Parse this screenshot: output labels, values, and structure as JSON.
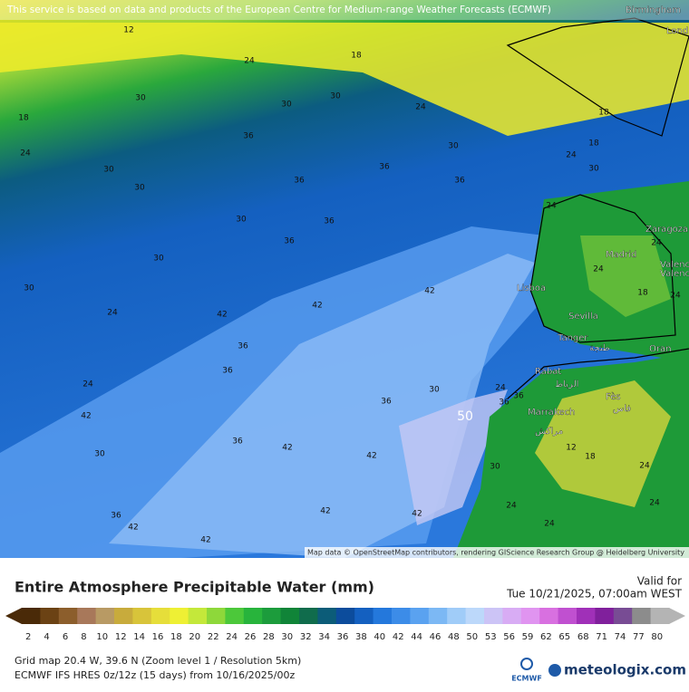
{
  "header": {
    "attribution": "This service is based on data and products of the European Centre for Medium-range Weather Forecasts (ECMWF)"
  },
  "map": {
    "credit": "Map data © OpenStreetMap contributors, rendering GIScience Research Group @ Heidelberg University",
    "places": [
      "Birmingham",
      "Lond",
      "Zaragoza",
      "Madrid",
      "Valenc",
      "Valenc",
      "Lisboa",
      "Sevilla",
      "Tanger",
      "طنجة",
      "Oran",
      "Rabat",
      "الرباط",
      "Fès",
      "فاس",
      "Marrakech",
      "مراكش"
    ],
    "contour_labels": [
      12,
      24,
      18,
      18,
      30,
      30,
      24,
      30,
      36,
      30,
      18,
      24,
      36,
      30,
      36,
      18,
      30,
      30,
      36,
      36,
      36,
      30,
      42,
      42,
      30,
      42,
      42,
      36,
      36,
      36,
      30,
      36,
      42,
      36,
      42,
      42,
      50,
      30,
      42,
      42,
      42,
      36,
      30,
      24,
      24,
      36,
      24,
      24,
      24,
      18,
      24,
      12,
      18,
      24,
      24,
      24,
      24,
      30,
      24,
      24
    ]
  },
  "title": "Entire Atmosphere Precipitable Water (mm)",
  "valid": {
    "label": "Valid for",
    "time": "Tue 10/21/2025, 07:00am WEST"
  },
  "colorbar": {
    "values": [
      2,
      4,
      6,
      8,
      10,
      12,
      14,
      16,
      18,
      20,
      22,
      24,
      26,
      28,
      30,
      32,
      34,
      36,
      38,
      40,
      42,
      44,
      46,
      48,
      50,
      53,
      56,
      59,
      62,
      65,
      68,
      71,
      74,
      77,
      80
    ],
    "colors": [
      "#4a2a08",
      "#6b4214",
      "#8c5e2c",
      "#a8785a",
      "#b89a64",
      "#c8ab3c",
      "#d8c43a",
      "#e6de3a",
      "#eef034",
      "#c4e83a",
      "#8ed83a",
      "#4cc83a",
      "#28b43c",
      "#1c9c3c",
      "#108438",
      "#106c4c",
      "#0c5c78",
      "#0c4c9c",
      "#1460c0",
      "#2478dc",
      "#3c8ce8",
      "#5aa2f0",
      "#7cb8f4",
      "#a0ccf8",
      "#bcd8fa",
      "#ccc4f6",
      "#d8acf4",
      "#e094f0",
      "#d870e0",
      "#c050d0",
      "#a030b8",
      "#80209c",
      "#784c94",
      "#8c8c8c",
      "#b4b4b4"
    ]
  },
  "footer": {
    "grid_info": "Grid map 20.4 W, 39.6 N (Zoom level 1 / Resolution 5km)",
    "model_info": "ECMWF IFS HRES 0z/12z (15 days) from  10/16/2025/00z",
    "ecmwf_logo": "ECMWF",
    "brand": "meteologix.com"
  }
}
